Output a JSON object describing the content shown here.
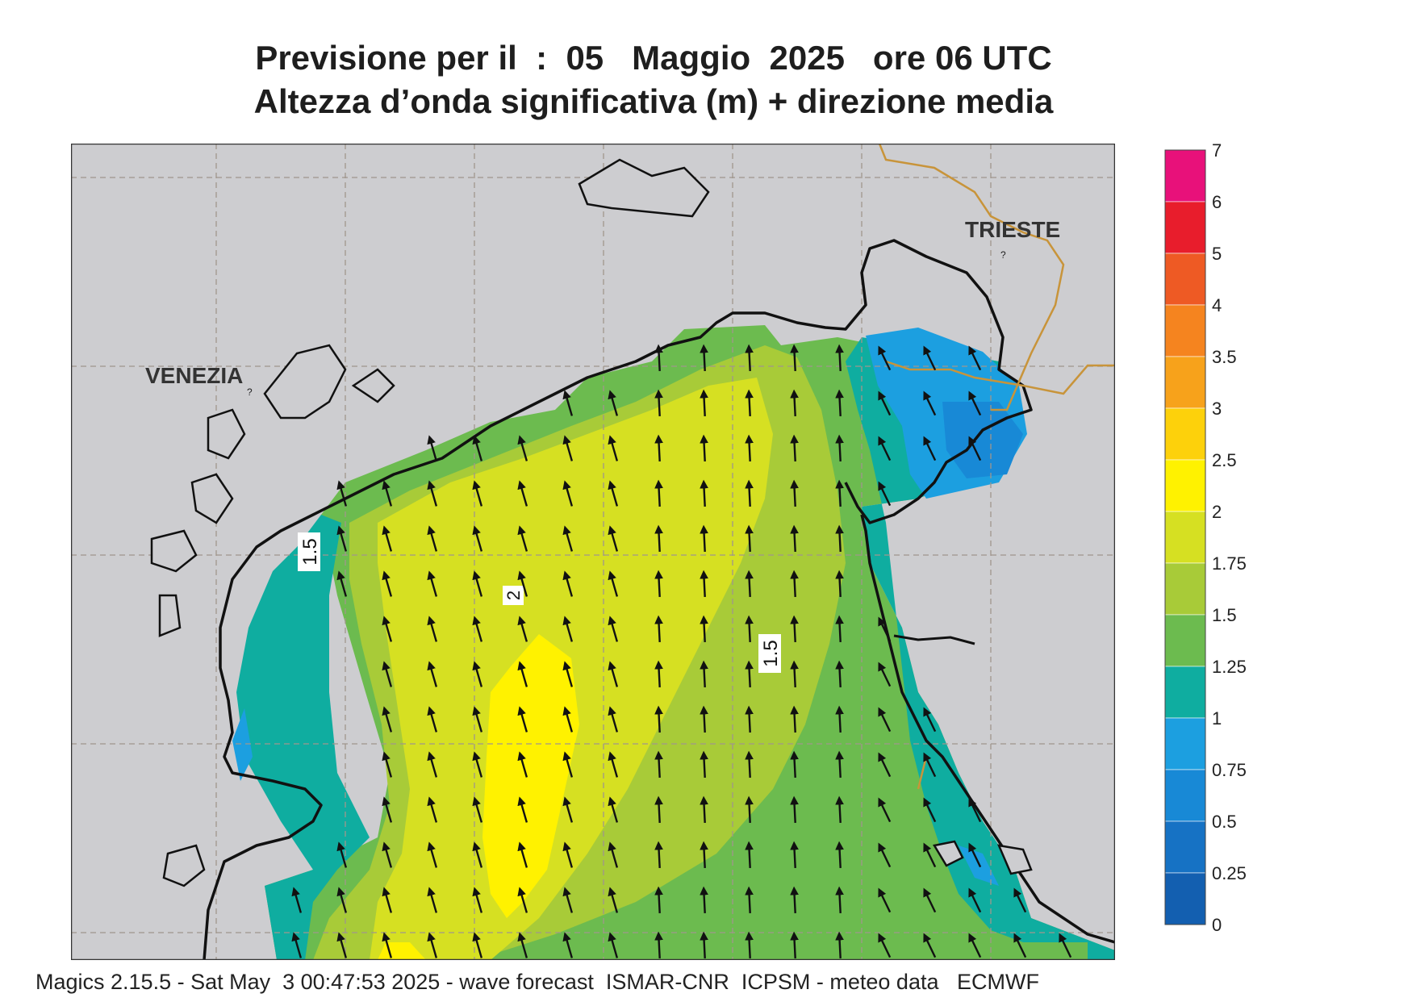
{
  "title_line1": "Previsione per il  :  05   Maggio  2025   ore 06 UTC",
  "title_line2": "Altezza d’onda significativa (m) + direzione media",
  "footer": "Magics 2.15.5 - Sat May  3 00:47:53 2025 - wave forecast  ISMAR-CNR  ICPSM - meteo data   ECMWF",
  "places": [
    {
      "name": "VENEZIA"
    },
    {
      "name": "TRIESTE"
    }
  ],
  "contour_labels": [
    "1.5",
    "2",
    "1.5"
  ],
  "unknown_markers": [
    "?",
    "?"
  ],
  "legend": {
    "levels": [
      {
        "value": "7",
        "color": "#e8117a"
      },
      {
        "value": "6",
        "color": "#e81d2c"
      },
      {
        "value": "5",
        "color": "#ee5a24"
      },
      {
        "value": "4",
        "color": "#f5841f"
      },
      {
        "value": "3.5",
        "color": "#f7a21b"
      },
      {
        "value": "3",
        "color": "#fdd10b"
      },
      {
        "value": "2.5",
        "color": "#fff200"
      },
      {
        "value": "2",
        "color": "#d6e022"
      },
      {
        "value": "1.75",
        "color": "#a8cb38"
      },
      {
        "value": "1.5",
        "color": "#6cbb4f"
      },
      {
        "value": "1.25",
        "color": "#0fada0"
      },
      {
        "value": "1",
        "color": "#1c9fe0"
      },
      {
        "value": "0.75",
        "color": "#1889d6"
      },
      {
        "value": "0.5",
        "color": "#1672c4"
      },
      {
        "value": "0.25",
        "color": "#135fb0"
      },
      {
        "value": "0",
        "color": ""
      }
    ]
  },
  "wave_direction": "north-northwest",
  "land_color": "#cdcdd0",
  "border_color": "#c8943a",
  "icons": [
    "wave-direction-arrow-icon"
  ]
}
